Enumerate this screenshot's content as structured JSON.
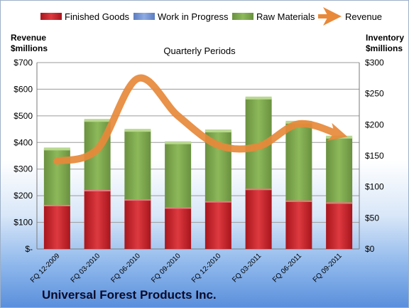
{
  "chart_data": {
    "type": "bar",
    "title": "Quarterly Periods",
    "company": "Universal Forest Products Inc.",
    "left_axis_label": [
      "Revenue",
      "$millions"
    ],
    "right_axis_label": [
      "Inventory",
      "$millions"
    ],
    "categories": [
      "FQ 12-2009",
      "FQ 03-2010",
      "FQ 06-2010",
      "FQ 09-2010",
      "FQ 12-2010",
      "FQ 03-2011",
      "FQ 06-2011",
      "FQ 09-2011"
    ],
    "stacked": true,
    "series": [
      {
        "name": "Finished Goods",
        "axis": "right",
        "color": "#c0242b",
        "values": [
          71,
          95,
          80,
          67,
          77,
          97,
          78,
          75
        ]
      },
      {
        "name": "Work in Progress",
        "axis": "right",
        "color": "#6d8fd2",
        "values": [
          0,
          0,
          0,
          0,
          0,
          0,
          0,
          0
        ]
      },
      {
        "name": "Raw Materials",
        "axis": "right",
        "color": "#77a04a",
        "values": [
          90,
          112,
          111,
          104,
          113,
          146,
          126,
          105
        ]
      },
      {
        "name": "Revenue",
        "type": "line",
        "axis": "left",
        "color": "#e8893a",
        "values": [
          330,
          375,
          640,
          500,
          390,
          385,
          470,
          430
        ]
      }
    ],
    "left_axis": {
      "min": 0,
      "max": 700,
      "ticks": [
        "$-",
        "$100",
        "$200",
        "$300",
        "$400",
        "$500",
        "$600",
        "$700"
      ]
    },
    "right_axis": {
      "min": 0,
      "max": 300,
      "ticks": [
        "$0",
        "$50",
        "$100",
        "$150",
        "$200",
        "$250",
        "$300"
      ]
    },
    "legend_position": "top",
    "grid": true
  }
}
